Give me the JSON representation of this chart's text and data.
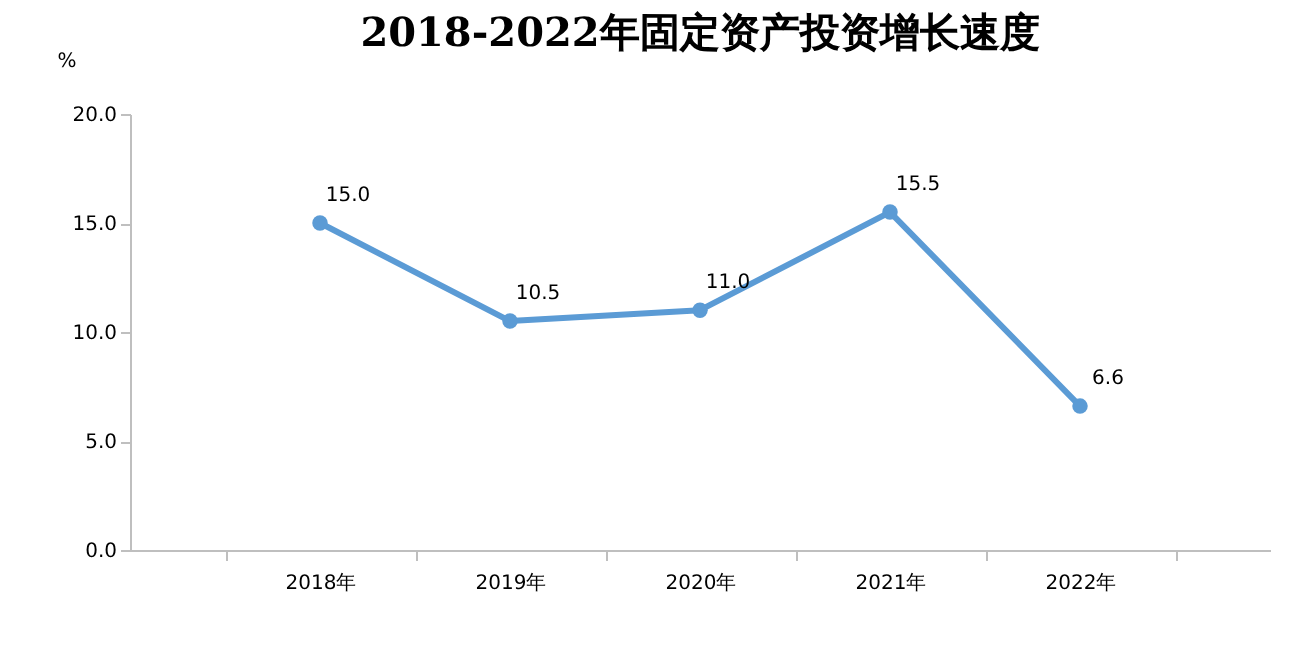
{
  "chart_data": {
    "type": "line",
    "title": "2018-2022年固定资产投资增长速度",
    "ylabel": "%",
    "categories": [
      "2018年",
      "2019年",
      "2020年",
      "2021年",
      "2022年"
    ],
    "series": [
      {
        "color": "#5b9bd5",
        "values": [
          15.0,
          10.5,
          11.0,
          15.5,
          6.6
        ],
        "value_labels": [
          "15.0",
          "10.5",
          "11.0",
          "15.5",
          "6.6"
        ]
      }
    ],
    "ylim": [
      0,
      20
    ],
    "yticks": [
      {
        "value": 0,
        "label": "0.0"
      },
      {
        "value": 5,
        "label": "5.0"
      },
      {
        "value": 10,
        "label": "10.0"
      },
      {
        "value": 15,
        "label": "15.0"
      },
      {
        "value": 20,
        "label": "20.0"
      }
    ],
    "grid": false,
    "marker": "circle",
    "line_style": "solid"
  }
}
